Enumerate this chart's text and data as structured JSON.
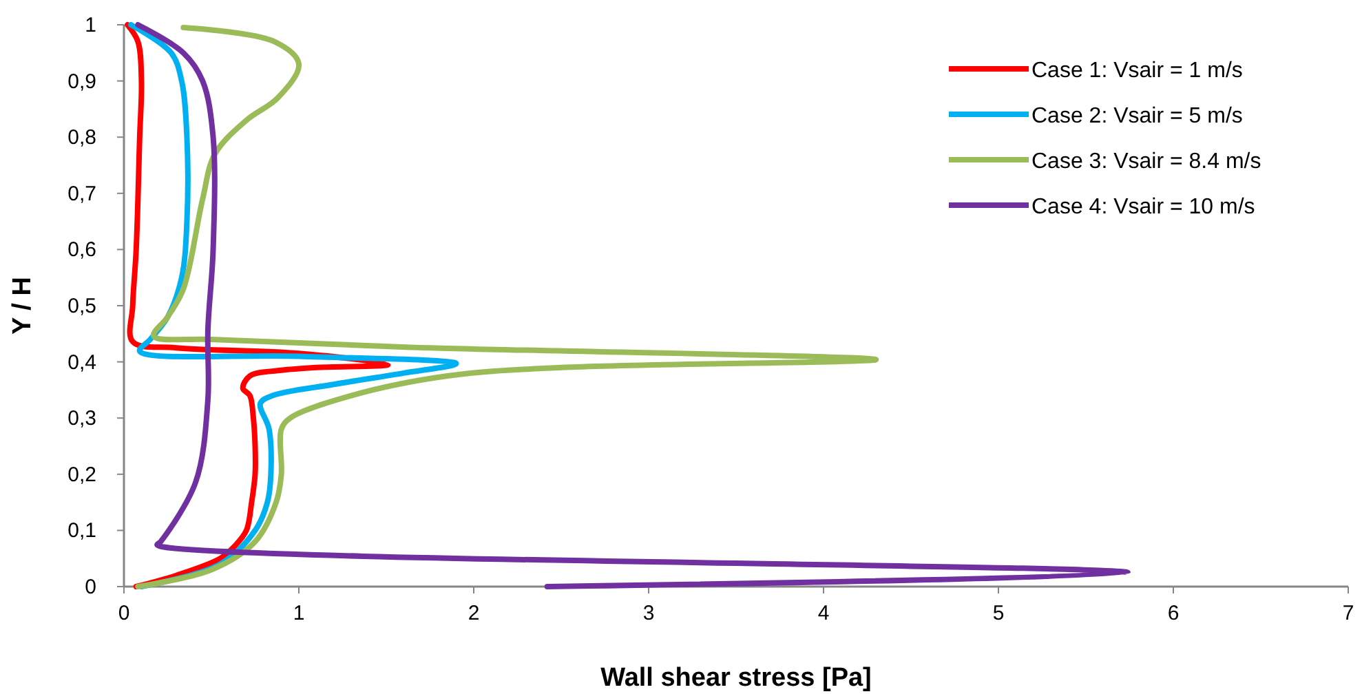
{
  "chart_data": {
    "type": "line",
    "xlabel": "Wall shear stress [Pa]",
    "ylabel": "Y / H",
    "xlim": [
      0,
      7
    ],
    "xticks": [
      0,
      1,
      2,
      3,
      4,
      5,
      6,
      7
    ],
    "ylim": [
      0,
      1
    ],
    "yticks": [
      0,
      {
        "value": 0.1,
        "label": "0,1"
      },
      {
        "value": 0.2,
        "label": "0,2"
      },
      {
        "value": 0.3,
        "label": "0,3"
      },
      {
        "value": 0.4,
        "label": "0,4"
      },
      {
        "value": 0.5,
        "label": "0,5"
      },
      {
        "value": 0.6,
        "label": "0,6"
      },
      {
        "value": 0.7,
        "label": "0,7"
      },
      {
        "value": 0.8,
        "label": "0,8"
      },
      {
        "value": 0.9,
        "label": "0,9"
      },
      1
    ],
    "grid": false,
    "legend": "top right",
    "marker": "none",
    "line_style": "solid",
    "series": [
      {
        "name": "Case 1: Vsair = 1 m/s",
        "color": "#ff0000",
        "x": [
          0.07,
          0.3,
          0.55,
          0.63,
          0.7,
          0.73,
          0.75,
          0.75,
          0.74,
          0.72,
          0.68,
          0.72,
          0.9,
          1.1,
          1.51,
          1.0,
          0.3,
          0.05,
          0.05,
          0.07,
          0.09,
          0.1,
          0.08,
          0.02
        ],
        "values": [
          0,
          0.02,
          0.05,
          0.071,
          0.1,
          0.15,
          0.2,
          0.25,
          0.3,
          0.34,
          0.353,
          0.375,
          0.385,
          0.39,
          0.395,
          0.415,
          0.425,
          0.436,
          0.5,
          0.6,
          0.8,
          0.9,
          0.97,
          1.0
        ]
      },
      {
        "name": "Case 2: Vsair = 5 m/s",
        "color": "#00b0f0",
        "x": [
          0.1,
          0.55,
          0.75,
          0.82,
          0.84,
          0.83,
          0.78,
          0.85,
          1.2,
          1.6,
          1.9,
          1.0,
          0.09,
          0.15,
          0.25,
          0.33,
          0.36,
          0.36,
          0.33,
          0.27,
          0.04
        ],
        "values": [
          0,
          0.04,
          0.1,
          0.15,
          0.2,
          0.28,
          0.326,
          0.34,
          0.36,
          0.38,
          0.397,
          0.41,
          0.419,
          0.44,
          0.48,
          0.55,
          0.65,
          0.8,
          0.9,
          0.95,
          1.0
        ]
      },
      {
        "name": "Case 3: Vsair = 8.4 m/s",
        "color": "#9bbb59",
        "x": [
          0.08,
          0.5,
          0.75,
          0.87,
          0.9,
          0.9,
          0.95,
          1.3,
          1.85,
          2.5,
          4.3,
          1.64,
          0.5,
          0.17,
          0.25,
          0.34,
          0.45,
          0.52,
          0.7,
          0.88,
          1.0,
          0.86,
          0.34
        ],
        "values": [
          0,
          0.03,
          0.08,
          0.15,
          0.2,
          0.28,
          0.3,
          0.34,
          0.375,
          0.39,
          0.404,
          0.426,
          0.44,
          0.446,
          0.48,
          0.53,
          0.69,
          0.77,
          0.83,
          0.87,
          0.93,
          0.97,
          0.995
        ]
      },
      {
        "name": "Case 4: Vsair = 10 m/s",
        "color": "#7030a0",
        "x": [
          2.42,
          5.74,
          0.19,
          0.21,
          0.41,
          0.48,
          0.48,
          0.51,
          0.51,
          0.45,
          0.34,
          0.08
        ],
        "values": [
          0,
          0.025,
          0.074,
          0.08,
          0.186,
          0.333,
          0.456,
          0.6,
          0.8,
          0.9,
          0.95,
          1.0
        ]
      }
    ]
  }
}
